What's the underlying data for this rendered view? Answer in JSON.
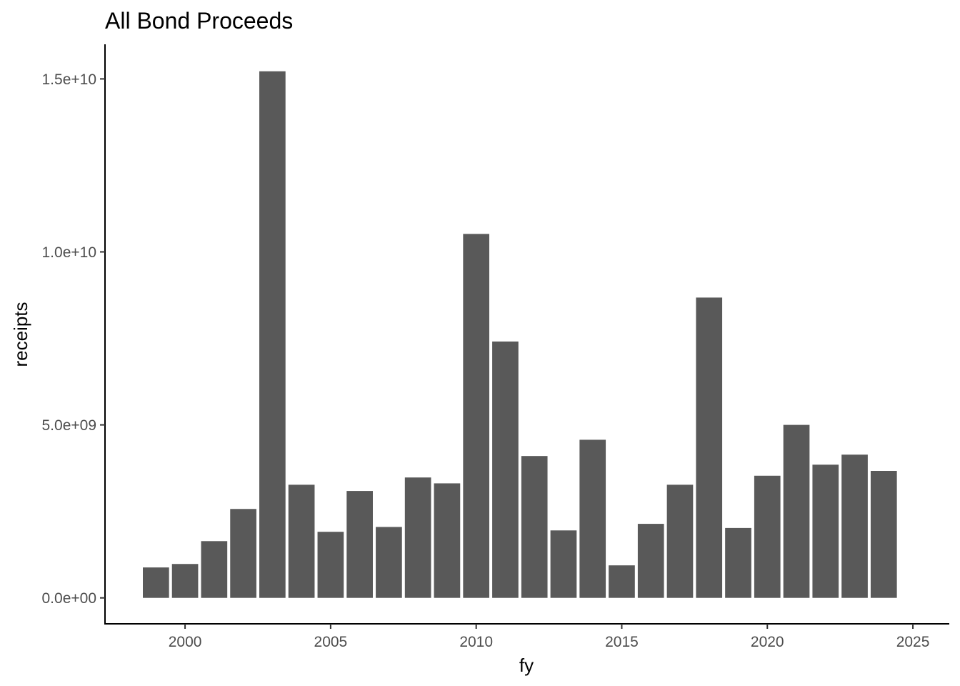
{
  "chart_data": {
    "type": "bar",
    "title": "All Bond Proceeds",
    "xlabel": "fy",
    "ylabel": "receipts",
    "x": [
      1999,
      2000,
      2001,
      2002,
      2003,
      2004,
      2005,
      2006,
      2007,
      2008,
      2009,
      2010,
      2011,
      2012,
      2013,
      2014,
      2015,
      2016,
      2017,
      2018,
      2019,
      2020,
      2021,
      2022,
      2023,
      2024
    ],
    "values": [
      880000000,
      980000000,
      1640000000,
      2570000000,
      15220000000,
      3270000000,
      1910000000,
      3090000000,
      2050000000,
      3480000000,
      3310000000,
      10520000000,
      7410000000,
      4100000000,
      1950000000,
      4570000000,
      940000000,
      2140000000,
      3270000000,
      8680000000,
      2020000000,
      3530000000,
      5000000000,
      3850000000,
      4140000000,
      3670000000
    ],
    "xlim": [
      1997.25,
      2026.25
    ],
    "ylim": [
      -750000000,
      16000000000
    ],
    "x_ticks": [
      2000,
      2005,
      2010,
      2015,
      2020,
      2025
    ],
    "x_tick_labels": [
      "2000",
      "2005",
      "2010",
      "2015",
      "2020",
      "2025"
    ],
    "y_ticks": [
      0,
      5000000000,
      10000000000,
      15000000000
    ],
    "y_tick_labels": [
      "0.0e+00",
      "5.0e+09",
      "1.0e+10",
      "1.5e+10"
    ],
    "bar_color": "#595959",
    "grid": false,
    "legend": "none"
  }
}
